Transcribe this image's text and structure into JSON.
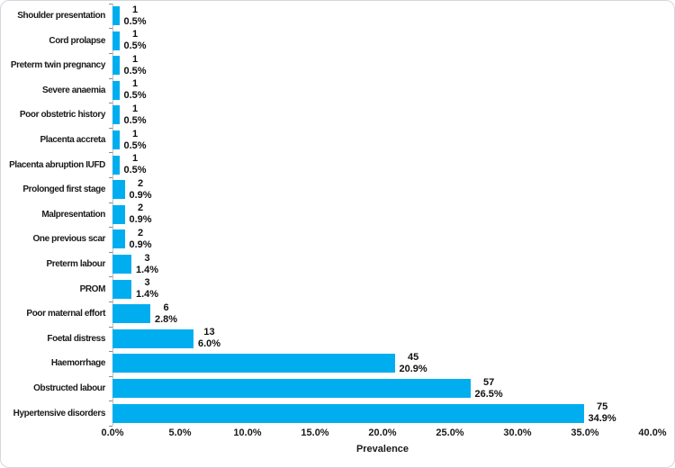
{
  "chart_data": {
    "type": "bar",
    "orientation": "horizontal",
    "title": "",
    "xlabel": "Prevalence",
    "ylabel": "",
    "xlim": [
      0,
      40
    ],
    "x_tick_labels": [
      "0.0%",
      "5.0%",
      "10.0%",
      "15.0%",
      "20.0%",
      "25.0%",
      "30.0%",
      "35.0%",
      "40.0%"
    ],
    "grid": false,
    "legend": false,
    "bar_color": "#00AEEF",
    "axis_line_color": "#bfbfbf",
    "categories": [
      "Shoulder presentation",
      "Cord prolapse",
      "Preterm twin pregnancy",
      "Severe anaemia",
      "Poor obstetric history",
      "Placenta accreta",
      "Placenta abruption IUFD",
      "Prolonged first stage",
      "Malpresentation",
      "One previous scar",
      "Preterm labour",
      "PROM",
      "Poor maternal effort",
      "Foetal distress",
      "Haemorrhage",
      "Obstructed labour",
      "Hypertensive disorders"
    ],
    "series": [
      {
        "name": "Count",
        "values": [
          1,
          1,
          1,
          1,
          1,
          1,
          1,
          2,
          2,
          2,
          3,
          3,
          6,
          13,
          45,
          57,
          75
        ]
      },
      {
        "name": "Prevalence %",
        "values": [
          0.5,
          0.5,
          0.5,
          0.5,
          0.5,
          0.5,
          0.5,
          0.9,
          0.9,
          0.9,
          1.4,
          1.4,
          2.8,
          6.0,
          20.9,
          26.5,
          34.9
        ]
      }
    ],
    "count_labels": [
      "1",
      "1",
      "1",
      "1",
      "1",
      "1",
      "1",
      "2",
      "2",
      "2",
      "3",
      "3",
      "6",
      "13",
      "45",
      "57",
      "75"
    ],
    "percent_labels": [
      "0.5%",
      "0.5%",
      "0.5%",
      "0.5%",
      "0.5%",
      "0.5%",
      "0.5%",
      "0.9%",
      "0.9%",
      "0.9%",
      "1.4%",
      "1.4%",
      "2.8%",
      "6.0%",
      "20.9%",
      "26.5%",
      "34.9%"
    ]
  }
}
